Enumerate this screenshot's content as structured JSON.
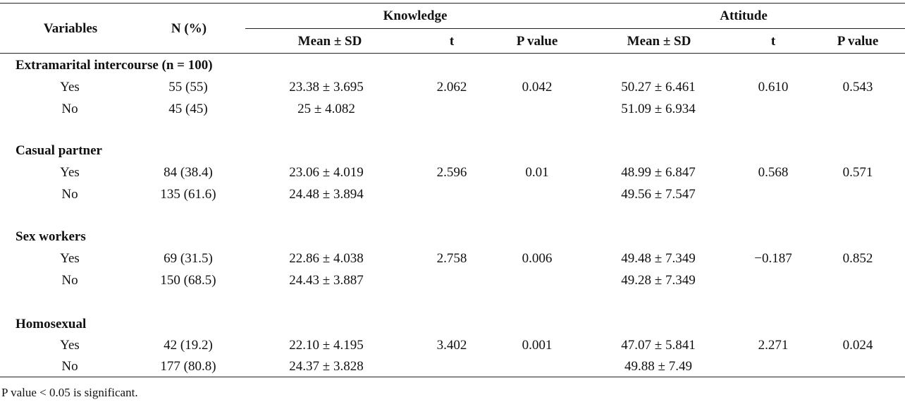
{
  "header": {
    "variables": "Variables",
    "n_pct": "N (%)",
    "knowledge": "Knowledge",
    "attitude": "Attitude",
    "k_mean": "Mean ± SD",
    "k_t": "t",
    "k_p": "P value",
    "a_mean": "Mean ± SD",
    "a_t": "t",
    "a_p": "P value"
  },
  "groups": [
    {
      "title": "Extramarital intercourse (n = 100)",
      "rows": [
        {
          "label": "Yes",
          "n": "55 (55)",
          "k_mean": "23.38 ± 3.695",
          "k_t": "2.062",
          "k_p": "0.042",
          "a_mean": "50.27 ± 6.461",
          "a_t": "0.610",
          "a_p": "0.543"
        },
        {
          "label": "No",
          "n": "45 (45)",
          "k_mean": "25 ± 4.082",
          "k_t": "",
          "k_p": "",
          "a_mean": "51.09 ± 6.934",
          "a_t": "",
          "a_p": ""
        }
      ]
    },
    {
      "title": "Casual partner",
      "rows": [
        {
          "label": "Yes",
          "n": "84 (38.4)",
          "k_mean": "23.06 ± 4.019",
          "k_t": "2.596",
          "k_p": "0.01",
          "a_mean": "48.99 ± 6.847",
          "a_t": "0.568",
          "a_p": "0.571"
        },
        {
          "label": "No",
          "n": "135 (61.6)",
          "k_mean": "24.48 ± 3.894",
          "k_t": "",
          "k_p": "",
          "a_mean": "49.56 ± 7.547",
          "a_t": "",
          "a_p": ""
        }
      ]
    },
    {
      "title": "Sex workers",
      "rows": [
        {
          "label": "Yes",
          "n": "69 (31.5)",
          "k_mean": "22.86 ± 4.038",
          "k_t": "2.758",
          "k_p": "0.006",
          "a_mean": "49.48 ± 7.349",
          "a_t": "−0.187",
          "a_p": "0.852"
        },
        {
          "label": "No",
          "n": "150 (68.5)",
          "k_mean": "24.43 ± 3.887",
          "k_t": "",
          "k_p": "",
          "a_mean": "49.28 ± 7.349",
          "a_t": "",
          "a_p": ""
        }
      ]
    },
    {
      "title": "Homosexual",
      "rows": [
        {
          "label": "Yes",
          "n": "42 (19.2)",
          "k_mean": "22.10 ± 4.195",
          "k_t": "3.402",
          "k_p": "0.001",
          "a_mean": "47.07 ± 5.841",
          "a_t": "2.271",
          "a_p": "0.024"
        },
        {
          "label": "No",
          "n": "177 (80.8)",
          "k_mean": "24.37 ± 3.828",
          "k_t": "",
          "k_p": "",
          "a_mean": "49.88 ± 7.49",
          "a_t": "",
          "a_p": ""
        }
      ]
    }
  ],
  "footnote": "P value < 0.05 is significant."
}
